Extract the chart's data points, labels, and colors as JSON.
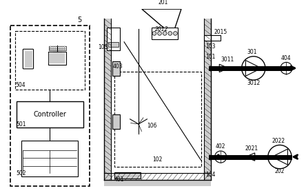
{
  "bg_color": "#ffffff",
  "line_color": "#000000",
  "gray_color": "#aaaaaa",
  "light_gray": "#cccccc",
  "dashed_color": "#555555",
  "figsize": [
    4.44,
    2.8
  ],
  "dpi": 100
}
